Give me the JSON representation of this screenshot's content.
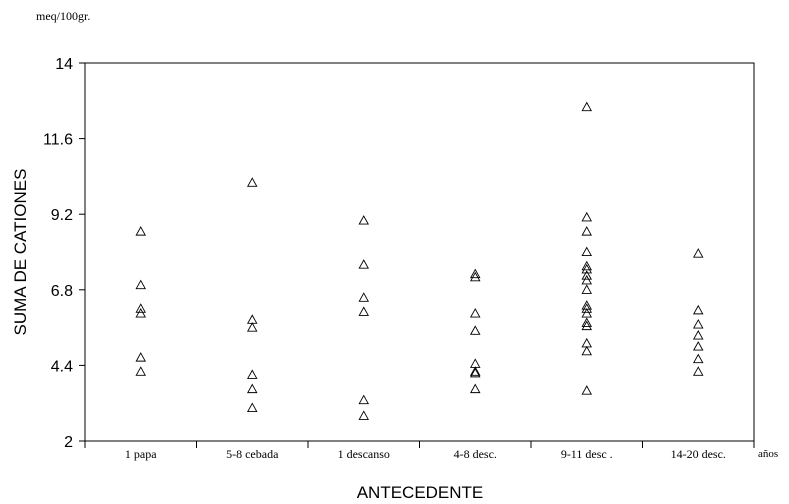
{
  "chart_data": {
    "type": "scatter",
    "unit_label": "meq/100gr.",
    "ylabel": "SUMA DE CATIONES",
    "xlabel": "ANTECEDENTE",
    "x_unit_label": "años",
    "ylim": [
      2,
      14
    ],
    "yticks": [
      "2",
      "4.4",
      "6.8",
      "9.2",
      "11.6",
      "14"
    ],
    "categories": [
      "1  papa",
      "5-8 cebada",
      "1 descanso",
      "4-8 desc.",
      "9-11 desc .",
      "14-20 desc."
    ],
    "marker": "open-triangle",
    "grid": false,
    "series": [
      {
        "points": [
          {
            "x": "1  papa",
            "y": 8.65
          },
          {
            "x": "1  papa",
            "y": 6.95
          },
          {
            "x": "1  papa",
            "y": 6.2
          },
          {
            "x": "1  papa",
            "y": 6.05
          },
          {
            "x": "1  papa",
            "y": 4.65
          },
          {
            "x": "1  papa",
            "y": 4.2
          },
          {
            "x": "5-8 cebada",
            "y": 10.2
          },
          {
            "x": "5-8 cebada",
            "y": 5.85
          },
          {
            "x": "5-8 cebada",
            "y": 5.6
          },
          {
            "x": "5-8 cebada",
            "y": 4.1
          },
          {
            "x": "5-8 cebada",
            "y": 3.65
          },
          {
            "x": "5-8 cebada",
            "y": 3.05
          },
          {
            "x": "1 descanso",
            "y": 9.0
          },
          {
            "x": "1 descanso",
            "y": 7.6
          },
          {
            "x": "1 descanso",
            "y": 6.55
          },
          {
            "x": "1 descanso",
            "y": 6.1
          },
          {
            "x": "1 descanso",
            "y": 3.3
          },
          {
            "x": "1 descanso",
            "y": 2.8
          },
          {
            "x": "4-8 desc.",
            "y": 7.3
          },
          {
            "x": "4-8 desc.",
            "y": 7.2
          },
          {
            "x": "4-8 desc.",
            "y": 6.05
          },
          {
            "x": "4-8 desc.",
            "y": 5.5
          },
          {
            "x": "4-8 desc.",
            "y": 4.45
          },
          {
            "x": "4-8 desc.",
            "y": 4.2
          },
          {
            "x": "4-8 desc.",
            "y": 4.15
          },
          {
            "x": "4-8 desc.",
            "y": 3.65
          },
          {
            "x": "9-11 desc .",
            "y": 12.6
          },
          {
            "x": "9-11 desc .",
            "y": 9.1
          },
          {
            "x": "9-11 desc .",
            "y": 8.65
          },
          {
            "x": "9-11 desc .",
            "y": 8.0
          },
          {
            "x": "9-11 desc .",
            "y": 7.55
          },
          {
            "x": "9-11 desc .",
            "y": 7.45
          },
          {
            "x": "9-11 desc .",
            "y": 7.25
          },
          {
            "x": "9-11 desc .",
            "y": 7.1
          },
          {
            "x": "9-11 desc .",
            "y": 6.8
          },
          {
            "x": "9-11 desc .",
            "y": 6.3
          },
          {
            "x": "9-11 desc .",
            "y": 6.2
          },
          {
            "x": "9-11 desc .",
            "y": 6.05
          },
          {
            "x": "9-11 desc .",
            "y": 5.75
          },
          {
            "x": "9-11 desc .",
            "y": 5.65
          },
          {
            "x": "9-11 desc .",
            "y": 5.1
          },
          {
            "x": "9-11 desc .",
            "y": 4.85
          },
          {
            "x": "9-11 desc .",
            "y": 3.6
          },
          {
            "x": "14-20 desc.",
            "y": 7.95
          },
          {
            "x": "14-20 desc.",
            "y": 6.15
          },
          {
            "x": "14-20 desc.",
            "y": 5.7
          },
          {
            "x": "14-20 desc.",
            "y": 5.35
          },
          {
            "x": "14-20 desc.",
            "y": 5.0
          },
          {
            "x": "14-20 desc.",
            "y": 4.6
          },
          {
            "x": "14-20 desc.",
            "y": 4.2
          }
        ]
      }
    ]
  }
}
